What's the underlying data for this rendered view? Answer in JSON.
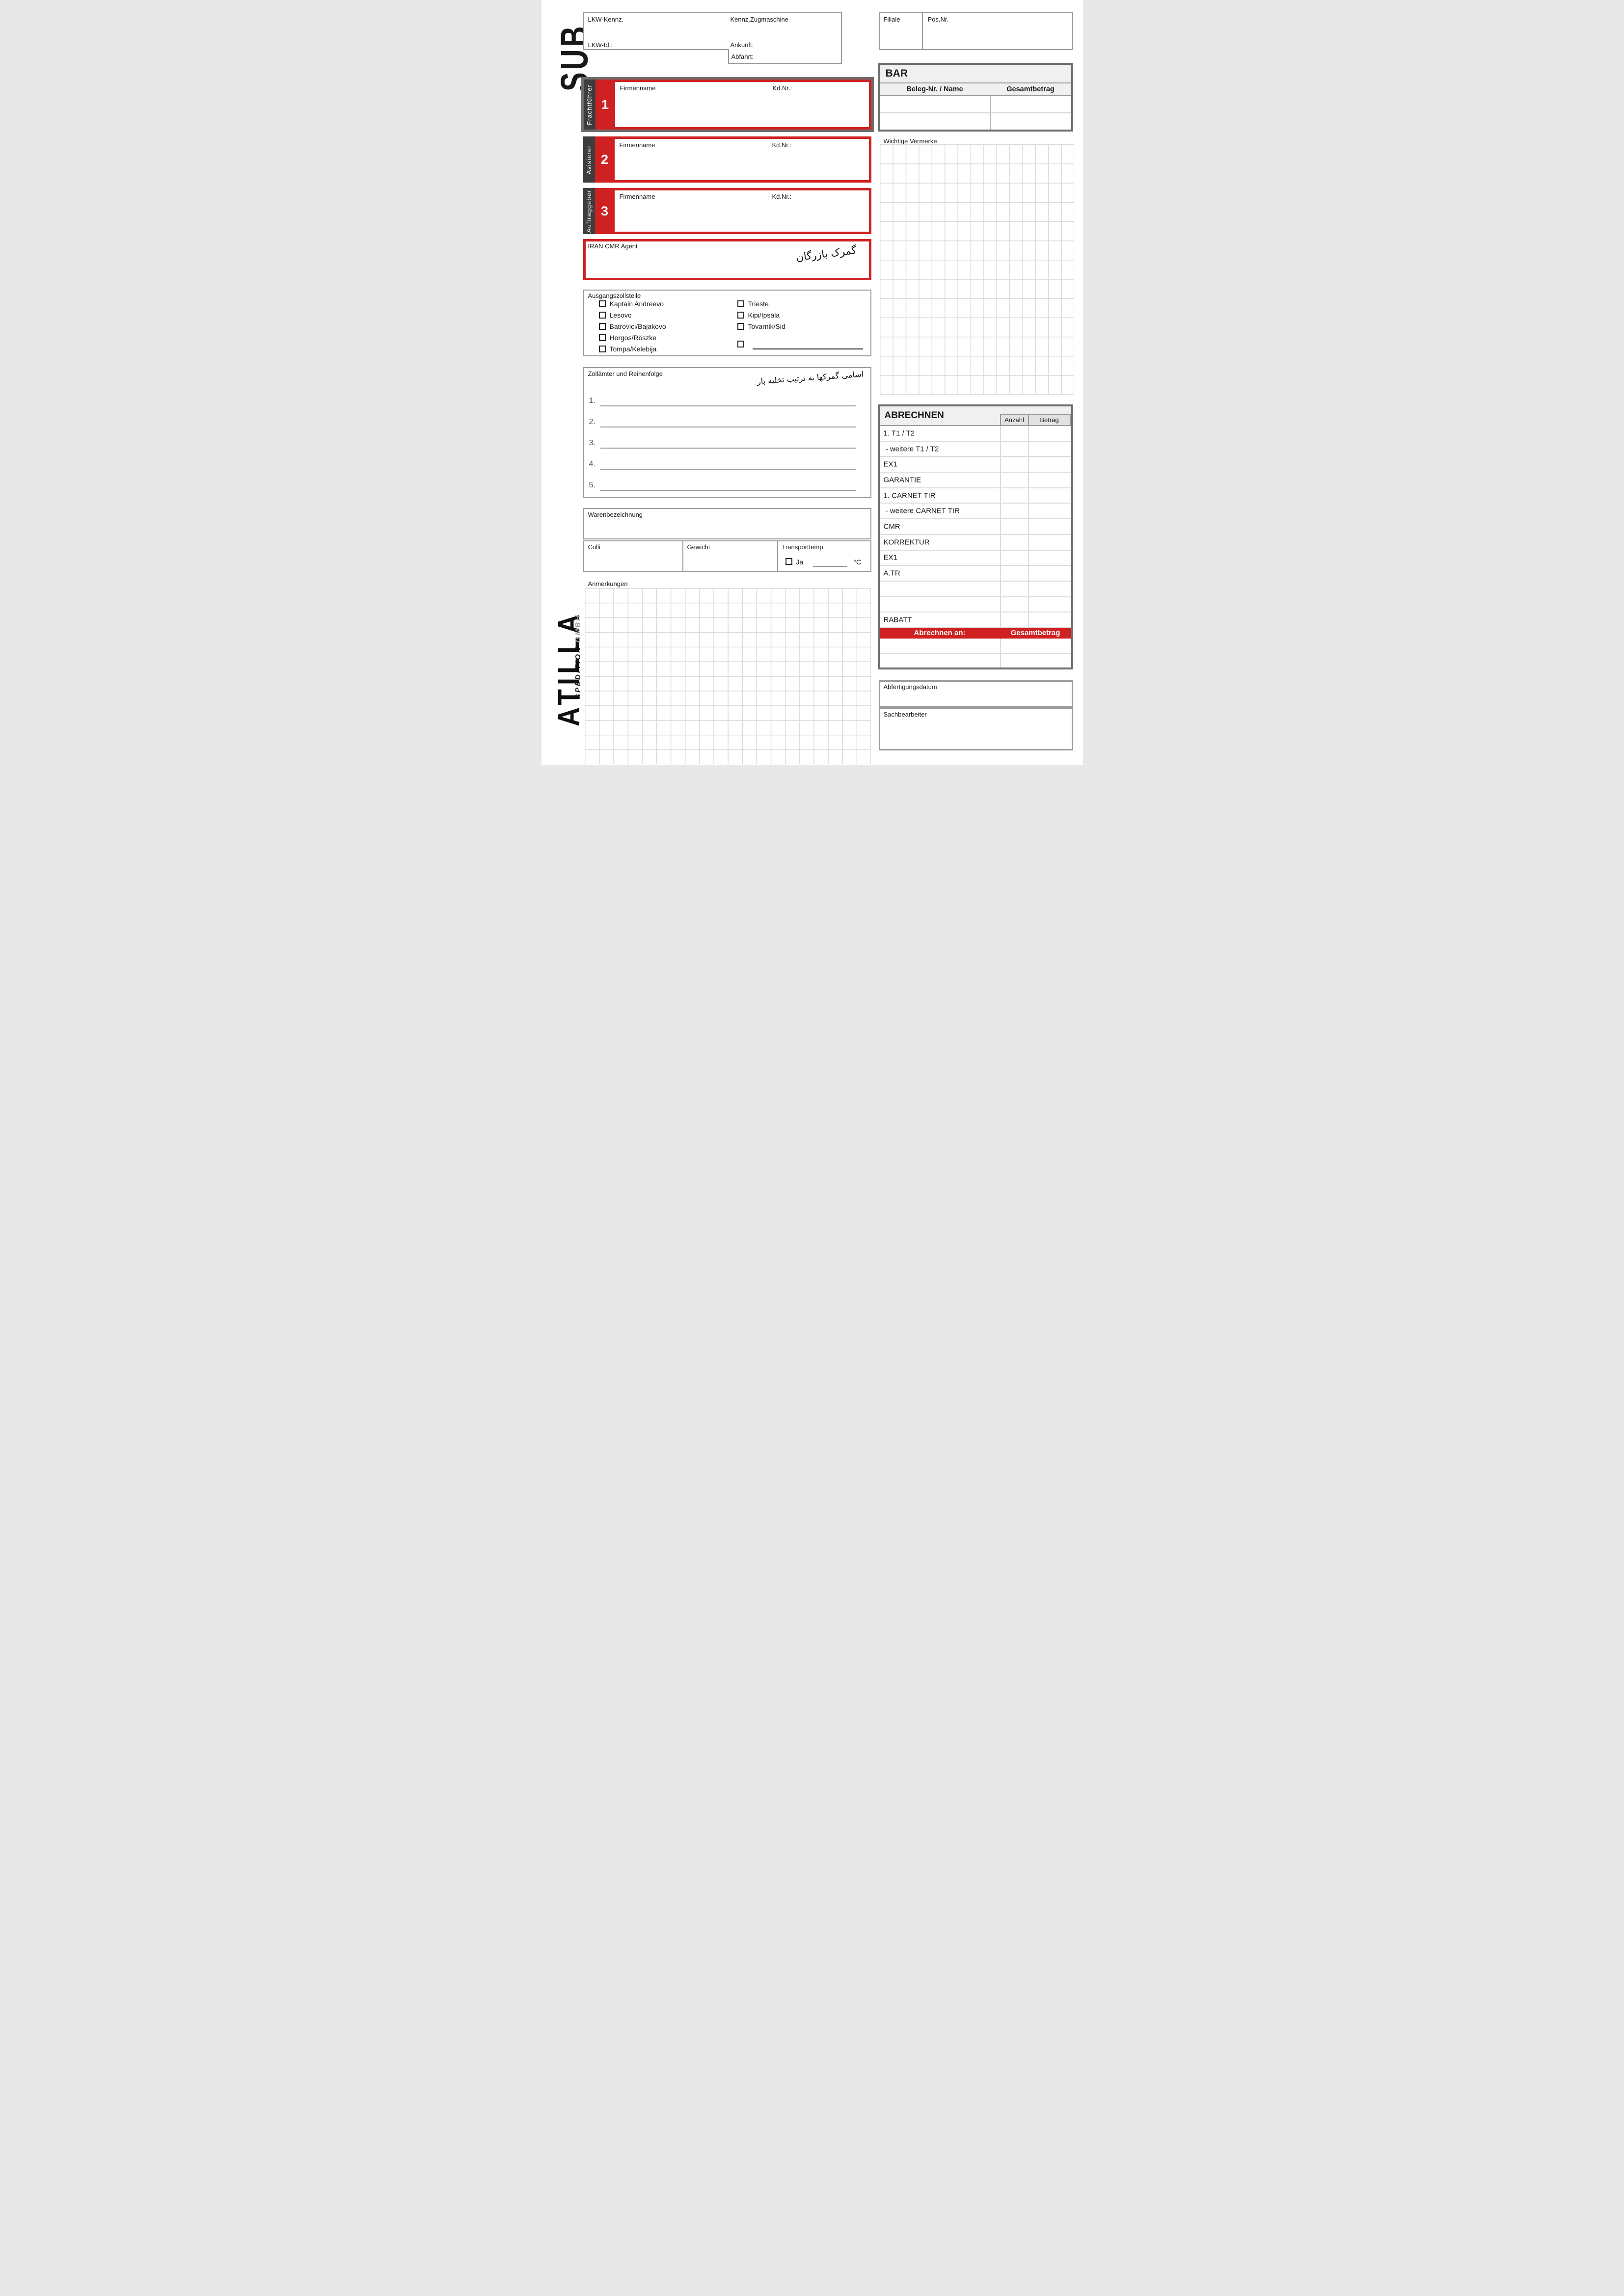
{
  "brand": {
    "sub": "SUB",
    "name": "ATILLA",
    "spedition": "SPEDITION",
    "gmbh": "GMBH"
  },
  "truck_box": {
    "lkw_kennz": "LKW-Kennz.",
    "kennz_zugmaschine": "Kennz.Zugmaschine",
    "lkw_id": "LKW-Id.:",
    "ankunft": "Ankunft:",
    "abfahrt": "Abfahrt:"
  },
  "filiale_box": {
    "filiale": "Filiale",
    "pos_nr": "Pos.Nr."
  },
  "bar": {
    "title": "BAR",
    "col_name": "Beleg-Nr. / Name",
    "col_amount": "Gesamtbetrag"
  },
  "parties": [
    {
      "num": "1",
      "role": "Frachtführer",
      "company_label": "Firmenname",
      "customer_label": "Kd.Nr.:"
    },
    {
      "num": "2",
      "role": "Avisierer",
      "company_label": "Firmenname",
      "customer_label": "Kd.Nr.:"
    },
    {
      "num": "3",
      "role": "Auftraggeber",
      "company_label": "Firmenname",
      "customer_label": "Kd.Nr.:"
    }
  ],
  "iran_cmr": {
    "label": "IRAN CMR Agent",
    "handwriting": "گمرک بازرگان"
  },
  "exit_customs": {
    "label": "Ausgangszollstelle",
    "col1": [
      "Kaptain Andreevo",
      "Lesovo",
      "Batrovici/Bajakovo",
      "Horgos/Röszke",
      "Tompa/Kelebija"
    ],
    "col2": [
      "Trieste",
      "Kipi/Ipsala",
      "Tovarnik/Sid"
    ]
  },
  "customs_order": {
    "label": "Zollämter und Reihenfolge",
    "handwriting": "اسامی گمرکها به ترتیب تخلیه بار",
    "lines": [
      "1.",
      "2.",
      "3.",
      "4.",
      "5."
    ]
  },
  "goods": {
    "warenbezeichnung": "Warenbezeichnung",
    "colli": "Colli",
    "gewicht": "Gewicht",
    "transporttemp": "Transporttemp.",
    "ja": "Ja",
    "unit": "°C"
  },
  "anmerkungen": "Anmerkungen",
  "wichtige_vermerke": "Wichtige Vermerke",
  "abrechnen": {
    "title": "ABRECHNEN",
    "anzahl": "Anzahl",
    "betrag": "Betrag",
    "rows": [
      "1. T1 / T2",
      " - weitere T1 / T2",
      "EX1",
      "GARANTIE",
      "1. CARNET TIR",
      " - weitere CARNET TIR",
      "CMR",
      "KORREKTUR",
      "EX1",
      "A.TR",
      "",
      "",
      "RABATT"
    ],
    "footer_left": "Abrechnen an:",
    "footer_right": "Gesamtbetrag"
  },
  "bottom": {
    "abfertigungsdatum": "Abfertigungsdatum",
    "sachbearbeiter": "Sachbearbeiter"
  },
  "colors": {
    "red": "#cf2121",
    "dark_strip": "#3d3d3d",
    "frame": "#6e6e6e",
    "border": "#9a9a9a",
    "grid": "#d9d9d9",
    "header_bg": "#f0f0f0"
  }
}
